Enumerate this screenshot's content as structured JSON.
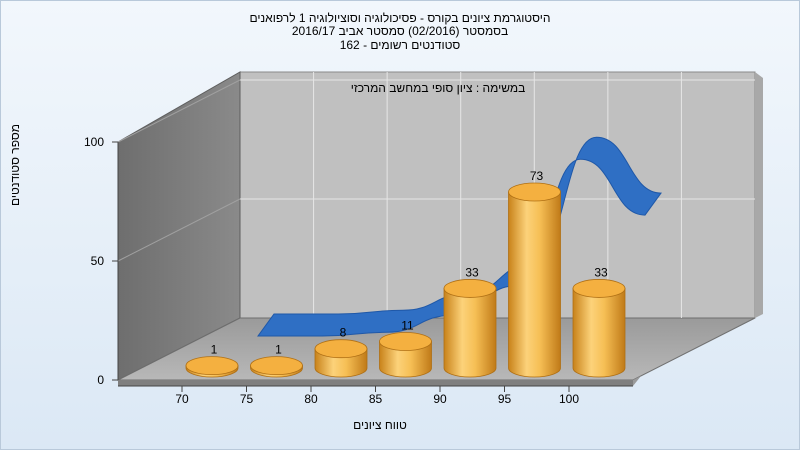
{
  "title_lines": [
    "היסטוגרמת ציונים בקורס - פסיכולוגיה וסוציולוגיה 1 לרפואנים",
    "בסמסטר  (02/2016)  סמסטר אביב 2016/17",
    "סטודנטים רשומים - 162"
  ],
  "chart_data": {
    "type": "bar",
    "title": "במשימה : ציון סופי במחשב המרכזי",
    "xlabel": "טווח ציונים",
    "ylabel": "מספר סטודנטים",
    "x_ticks": [
      "70",
      "75",
      "80",
      "85",
      "90",
      "95",
      "100"
    ],
    "y_ticks": [
      "0",
      "50",
      "100"
    ],
    "ylim": [
      0,
      100
    ],
    "series": [
      {
        "values": [
          1,
          1,
          8,
          11,
          33,
          73,
          33
        ],
        "color": "#f0a830"
      },
      {
        "type": "area-ribbon",
        "values": [
          0,
          0,
          2,
          11,
          27,
          95,
          65
        ],
        "color": "#2f6fc4"
      }
    ],
    "data_labels": [
      "1",
      "1",
      "8",
      "11",
      "33",
      "73",
      "33"
    ],
    "grid": true,
    "background_color": "#c0c0c0"
  }
}
